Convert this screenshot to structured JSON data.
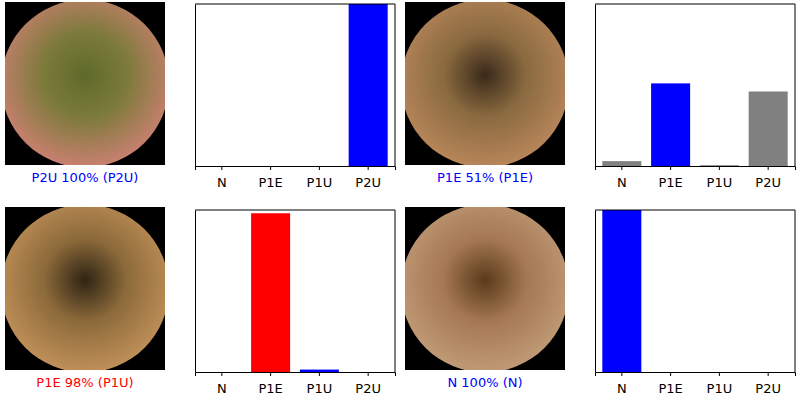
{
  "chart_data": [
    {
      "type": "bar",
      "title": "P2U 100% (P2U)",
      "categories": [
        "N",
        "P1E",
        "P1U",
        "P2U"
      ],
      "values": [
        0,
        0,
        0,
        1.0
      ],
      "colors": [
        "#808080",
        "#808080",
        "#808080",
        "#0000ff"
      ],
      "ylim": [
        0,
        1
      ],
      "tick_labels": "x"
    },
    {
      "type": "bar",
      "title": "P1E 51% (P1E)",
      "categories": [
        "N",
        "P1E",
        "P1U",
        "P2U"
      ],
      "values": [
        0.03,
        0.51,
        0.005,
        0.46
      ],
      "colors": [
        "#808080",
        "#0000ff",
        "#808080",
        "#808080"
      ],
      "ylim": [
        0,
        1
      ],
      "tick_labels": "x"
    },
    {
      "type": "bar",
      "title": "P1E 98% (P1U)",
      "categories": [
        "N",
        "P1E",
        "P1U",
        "P2U"
      ],
      "values": [
        0,
        0.98,
        0.015,
        0
      ],
      "colors": [
        "#808080",
        "#ff0000",
        "#0000ff",
        "#808080"
      ],
      "ylim": [
        0,
        1
      ],
      "tick_labels": "x"
    },
    {
      "type": "bar",
      "title": "N 100% (N)",
      "categories": [
        "N",
        "P1E",
        "P1U",
        "P2U"
      ],
      "values": [
        1.0,
        0,
        0,
        0
      ],
      "colors": [
        "#0000ff",
        "#808080",
        "#808080",
        "#808080"
      ],
      "ylim": [
        0,
        1
      ],
      "tick_labels": "x"
    }
  ]
}
